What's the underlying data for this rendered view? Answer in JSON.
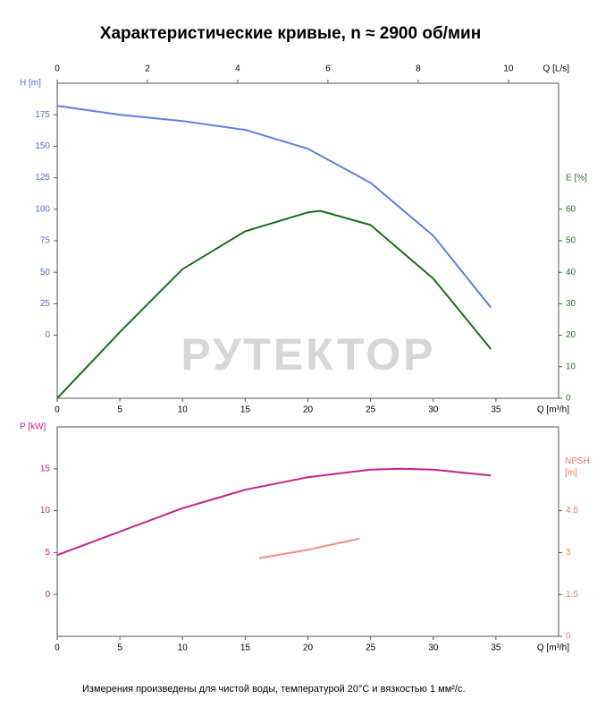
{
  "title": "Характеристические кривые, n ≈ 2900 об/мин",
  "watermark": "РУТЕКТОР",
  "note": "Измерения произведены для чистой воды, температурой 20°C и вязкостью 1 мм²/с.",
  "chart_data": [
    {
      "type": "line",
      "xlabel": "Q [m³/h]",
      "xlim": [
        0,
        40
      ],
      "xticks": [
        0,
        5,
        10,
        15,
        20,
        25,
        30,
        35
      ],
      "x2label": "Q [L/s]",
      "x2lim": [
        0,
        11.111
      ],
      "x2ticks": [
        0,
        2,
        4,
        6,
        8,
        10
      ],
      "ylabel": "H [m]",
      "ylim": [
        -50,
        200
      ],
      "yticks": [
        0,
        25,
        50,
        75,
        100,
        125,
        150,
        175
      ],
      "ycolor": "#4a6fd8",
      "y2label": "E [%]",
      "y2lim": [
        0,
        100
      ],
      "y2ticks": [
        0,
        10,
        20,
        30,
        40,
        50,
        60
      ],
      "y2color": "#1e7a1e",
      "series": [
        {
          "color": "#5b80e6",
          "x": [
            0,
            5,
            10,
            15,
            20,
            25,
            30,
            34.6
          ],
          "values": [
            182,
            175,
            170,
            163,
            148,
            121,
            79,
            22
          ]
        },
        {
          "color": "#1a6e1a",
          "axis": "y2",
          "x": [
            0,
            5,
            10,
            15,
            20,
            21,
            25,
            30,
            34.6
          ],
          "values": [
            0,
            21,
            41,
            53,
            59,
            59.5,
            55,
            38,
            15.6
          ]
        }
      ]
    },
    {
      "type": "line",
      "xlabel": "Q [m³/h]",
      "xlim": [
        0,
        40
      ],
      "xticks": [
        0,
        5,
        10,
        15,
        20,
        25,
        30,
        35
      ],
      "ylabel": "P [kW]",
      "ylim": [
        -5,
        20
      ],
      "yticks": [
        0,
        5,
        10,
        15
      ],
      "ycolor": "#c4218c",
      "y2label": "NPSH [m]",
      "y2lim": [
        0,
        7.5
      ],
      "y2ticks": [
        0,
        1.5,
        3,
        4.5
      ],
      "y2color": "#f07a62",
      "series": [
        {
          "color": "#c4218c",
          "x": [
            0,
            5,
            10,
            15,
            20,
            25,
            27.5,
            30,
            34.6
          ],
          "values": [
            4.7,
            7.5,
            10.3,
            12.5,
            14.0,
            14.9,
            15.0,
            14.9,
            14.2
          ]
        },
        {
          "color": "#f58a78",
          "axis": "y2",
          "x": [
            16.1,
            20,
            24.1
          ],
          "values": [
            2.8,
            3.1,
            3.5
          ]
        }
      ]
    }
  ]
}
